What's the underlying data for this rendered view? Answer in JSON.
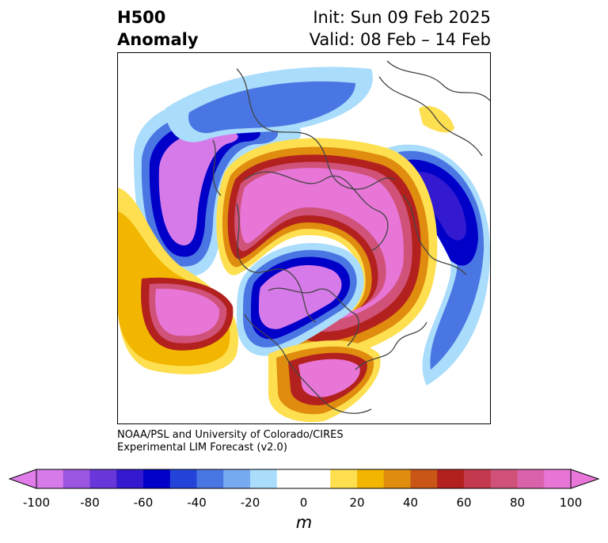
{
  "header": {
    "title_line1": "H500",
    "title_line2": "Anomaly",
    "init": "Init: Sun 09 Feb 2025",
    "valid": "Valid: 08 Feb – 14 Feb"
  },
  "credit": {
    "line1": "NOAA/PSL and University of Colorado/CIRES",
    "line2": "Experimental LIM Forecast (v2.0)"
  },
  "colorbar": {
    "ticks": [
      "-100",
      "-80",
      "-60",
      "-40",
      "-20",
      "0",
      "20",
      "40",
      "60",
      "80",
      "100"
    ],
    "units": "m",
    "colors": [
      "#d77ae9",
      "#9b55e0",
      "#6836d9",
      "#3319cf",
      "#0000c8",
      "#2444d9",
      "#4a76e3",
      "#77aaf0",
      "#aadcfb",
      "#ffffff",
      "#ffffff",
      "#fddf4f",
      "#f2b500",
      "#e08c0e",
      "#c95517",
      "#b3211f",
      "#c3384c",
      "#d05279",
      "#da62ab",
      "#e776d7"
    ],
    "extend_low_color": "#e07de9",
    "extend_high_color": "#e877d9"
  }
}
